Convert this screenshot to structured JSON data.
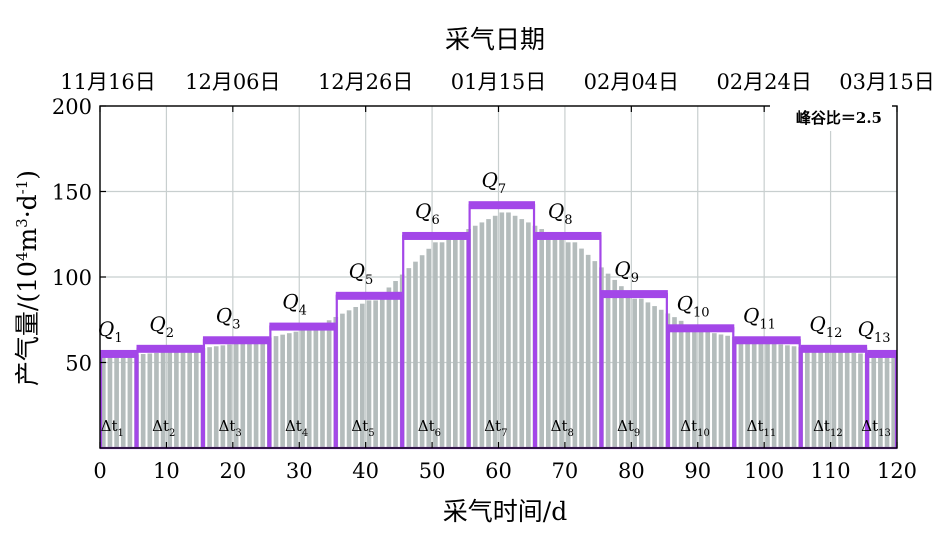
{
  "chart_data": {
    "type": "bar",
    "title": "",
    "x_axis": {
      "label": "采气时间/d",
      "min": 0,
      "max": 120,
      "ticks": [
        0,
        10,
        20,
        30,
        40,
        50,
        60,
        70,
        80,
        90,
        100,
        110,
        120
      ]
    },
    "top_axis": {
      "label": "采气日期",
      "ticks": [
        {
          "x": 0,
          "label": "11月16日"
        },
        {
          "x": 20,
          "label": "12月06日"
        },
        {
          "x": 40,
          "label": "12月26日"
        },
        {
          "x": 60,
          "label": "01月15日"
        },
        {
          "x": 80,
          "label": "02月04日"
        },
        {
          "x": 100,
          "label": "02月24日"
        },
        {
          "x": 120,
          "label": "03月15日"
        }
      ]
    },
    "y_axis": {
      "label_main": "产气量/(10",
      "label_sup1": "4",
      "label_mid": "m",
      "label_sup2": "3",
      "label_mid2": "·d",
      "label_sup3": "-1",
      "label_end": ")",
      "min": 0,
      "max": 200,
      "ticks": [
        50,
        100,
        150,
        200
      ]
    },
    "annotation": "峰谷比＝2.5",
    "grid": true,
    "series": [
      {
        "kind": "daily-bars",
        "color": "#b4bcbc",
        "x_start": 0.5,
        "x_step": 1
      },
      {
        "kind": "step-levels",
        "color": "#a347e8",
        "segments": [
          {
            "q": "Q",
            "q_sub": "1",
            "dt": "Δt",
            "dt_sub": "1",
            "x0": 0,
            "x1": 5.5,
            "value": 55
          },
          {
            "q": "Q",
            "q_sub": "2",
            "dt": "Δt",
            "dt_sub": "2",
            "x0": 5.5,
            "x1": 15.5,
            "value": 58
          },
          {
            "q": "Q",
            "q_sub": "3",
            "dt": "Δt",
            "dt_sub": "3",
            "x0": 15.5,
            "x1": 25.5,
            "value": 63
          },
          {
            "q": "Q",
            "q_sub": "4",
            "dt": "Δt",
            "dt_sub": "4",
            "x0": 25.5,
            "x1": 35.5,
            "value": 71
          },
          {
            "q": "Q",
            "q_sub": "5",
            "dt": "Δt",
            "dt_sub": "5",
            "x0": 35.5,
            "x1": 45.5,
            "value": 89
          },
          {
            "q": "Q",
            "q_sub": "6",
            "dt": "Δt",
            "dt_sub": "6",
            "x0": 45.5,
            "x1": 55.5,
            "value": 124
          },
          {
            "q": "Q",
            "q_sub": "7",
            "dt": "Δt",
            "dt_sub": "7",
            "x0": 55.5,
            "x1": 65.5,
            "value": 142
          },
          {
            "q": "Q",
            "q_sub": "8",
            "dt": "Δt",
            "dt_sub": "8",
            "x0": 65.5,
            "x1": 75.5,
            "value": 124
          },
          {
            "q": "Q",
            "q_sub": "9",
            "dt": "Δt",
            "dt_sub": "9",
            "x0": 75.5,
            "x1": 85.5,
            "value": 90
          },
          {
            "q": "Q",
            "q_sub": "10",
            "dt": "Δt",
            "dt_sub": "10",
            "x0": 85.5,
            "x1": 95.5,
            "value": 70
          },
          {
            "q": "Q",
            "q_sub": "11",
            "dt": "Δt",
            "dt_sub": "11",
            "x0": 95.5,
            "x1": 105.5,
            "value": 63
          },
          {
            "q": "Q",
            "q_sub": "12",
            "dt": "Δt",
            "dt_sub": "12",
            "x0": 105.5,
            "x1": 115.5,
            "value": 58
          },
          {
            "q": "Q",
            "q_sub": "13",
            "dt": "Δt",
            "dt_sub": "13",
            "x0": 115.5,
            "x1": 120,
            "value": 55
          }
        ]
      }
    ]
  }
}
